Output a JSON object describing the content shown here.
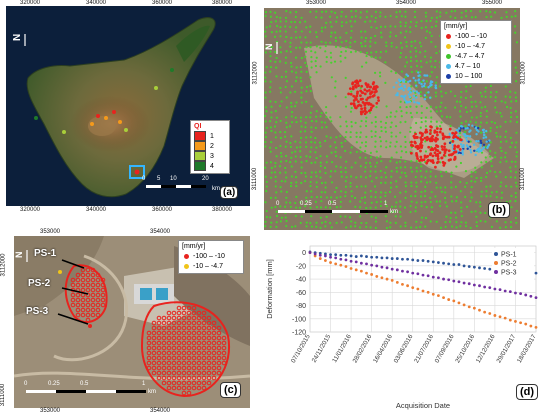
{
  "panel_a": {
    "label": "(a)",
    "x_ticks": [
      "320000",
      "340000",
      "360000",
      "380000"
    ],
    "y_ticks": [
      "3160000",
      "3140000",
      "3120000",
      "3100000"
    ],
    "legend_title": "QI",
    "legend_items": [
      {
        "label": "1",
        "color": "#e8231e"
      },
      {
        "label": "2",
        "color": "#f59a1b"
      },
      {
        "label": "3",
        "color": "#a9cf3a"
      },
      {
        "label": "4",
        "color": "#1f7a2a"
      }
    ],
    "scale_labels": [
      "0",
      "5",
      "10",
      "20"
    ],
    "scale_unit": "km"
  },
  "panel_b": {
    "label": "(b)",
    "x_ticks": [
      "353000",
      "354000",
      "355000"
    ],
    "y_ticks": [
      "3112000",
      "3111000"
    ],
    "legend_title": "[mm/yr]",
    "legend_items": [
      {
        "label": "-100 – -10",
        "color": "#e8231e"
      },
      {
        "label": "-10 – -4.7",
        "color": "#f0c419"
      },
      {
        "label": "-4.7 – 4.7",
        "color": "#3fc42c"
      },
      {
        "label": "4.7 – 10",
        "color": "#4ab9e8"
      },
      {
        "label": "10 – 100",
        "color": "#1b3fa8"
      }
    ],
    "scale_labels": [
      "0",
      "0.25",
      "0.5",
      "1"
    ],
    "scale_unit": "km"
  },
  "panel_c": {
    "label": "(c)",
    "x_ticks": [
      "353000",
      "354000"
    ],
    "y_ticks": [
      "3112000",
      "3111000"
    ],
    "legend_title": "[mm/yr]",
    "legend_items": [
      {
        "label": "-100 – -10",
        "color": "#e8231e"
      },
      {
        "label": "-10 – -4.7",
        "color": "#f0c419"
      }
    ],
    "scale_labels": [
      "0",
      "0.25",
      "0.5",
      "1"
    ],
    "scale_unit": "km",
    "ps_labels": [
      "PS-1",
      "PS-2",
      "PS-3"
    ]
  },
  "panel_d": {
    "label": "(d)"
  },
  "chart_data": {
    "type": "scatter",
    "xlabel": "Acquisition Date",
    "ylabel": "Deformation [mm]",
    "ylim": [
      -120,
      10
    ],
    "yticks": [
      0,
      -20,
      -40,
      -60,
      -80,
      -100,
      -120
    ],
    "categories": [
      "07/10/2015",
      "24/11/2015",
      "11/01/2016",
      "28/02/2016",
      "16/04/2016",
      "03/06/2016",
      "21/07/2016",
      "07/09/2016",
      "25/10/2016",
      "12/12/2016",
      "29/01/2017",
      "18/03/2017"
    ],
    "grid": true,
    "legend_position": "top-right",
    "series": [
      {
        "name": "PS-1",
        "color": "#2f5597",
        "values": [
          1,
          0,
          -1,
          -2,
          -3,
          -3,
          -4,
          -4,
          -5,
          -6,
          -5,
          -6,
          -7,
          -7,
          -8,
          -8,
          -9,
          -9,
          -10,
          -10,
          -11,
          -12,
          -12,
          -13,
          -14,
          -15,
          -16,
          -17,
          -18,
          -18,
          -20,
          -21,
          -22,
          -23,
          -24,
          -25,
          -26,
          -27,
          -27,
          -28,
          -29,
          -30,
          -30,
          -31,
          -31
        ]
      },
      {
        "name": "PS-2",
        "color": "#ed7d31",
        "values": [
          0,
          -5,
          -9,
          -12,
          -15,
          -17,
          -19,
          -21,
          -24,
          -26,
          -28,
          -31,
          -33,
          -36,
          -38,
          -40,
          -42,
          -45,
          -48,
          -50,
          -53,
          -55,
          -58,
          -60,
          -63,
          -65,
          -68,
          -71,
          -73,
          -76,
          -79,
          -82,
          -84,
          -87,
          -90,
          -92,
          -95,
          -97,
          -99,
          -102,
          -104,
          -106,
          -108,
          -111,
          -113
        ]
      },
      {
        "name": "PS-3",
        "color": "#7030a0",
        "values": [
          0,
          -2,
          -4,
          -5,
          -7,
          -8,
          -10,
          -11,
          -13,
          -14,
          -16,
          -17,
          -19,
          -20,
          -22,
          -23,
          -25,
          -26,
          -28,
          -29,
          -31,
          -32,
          -34,
          -35,
          -37,
          -38,
          -40,
          -41,
          -43,
          -44,
          -46,
          -47,
          -49,
          -50,
          -52,
          -53,
          -55,
          -56,
          -58,
          -59,
          -61,
          -62,
          -64,
          -66,
          -68
        ]
      }
    ]
  }
}
